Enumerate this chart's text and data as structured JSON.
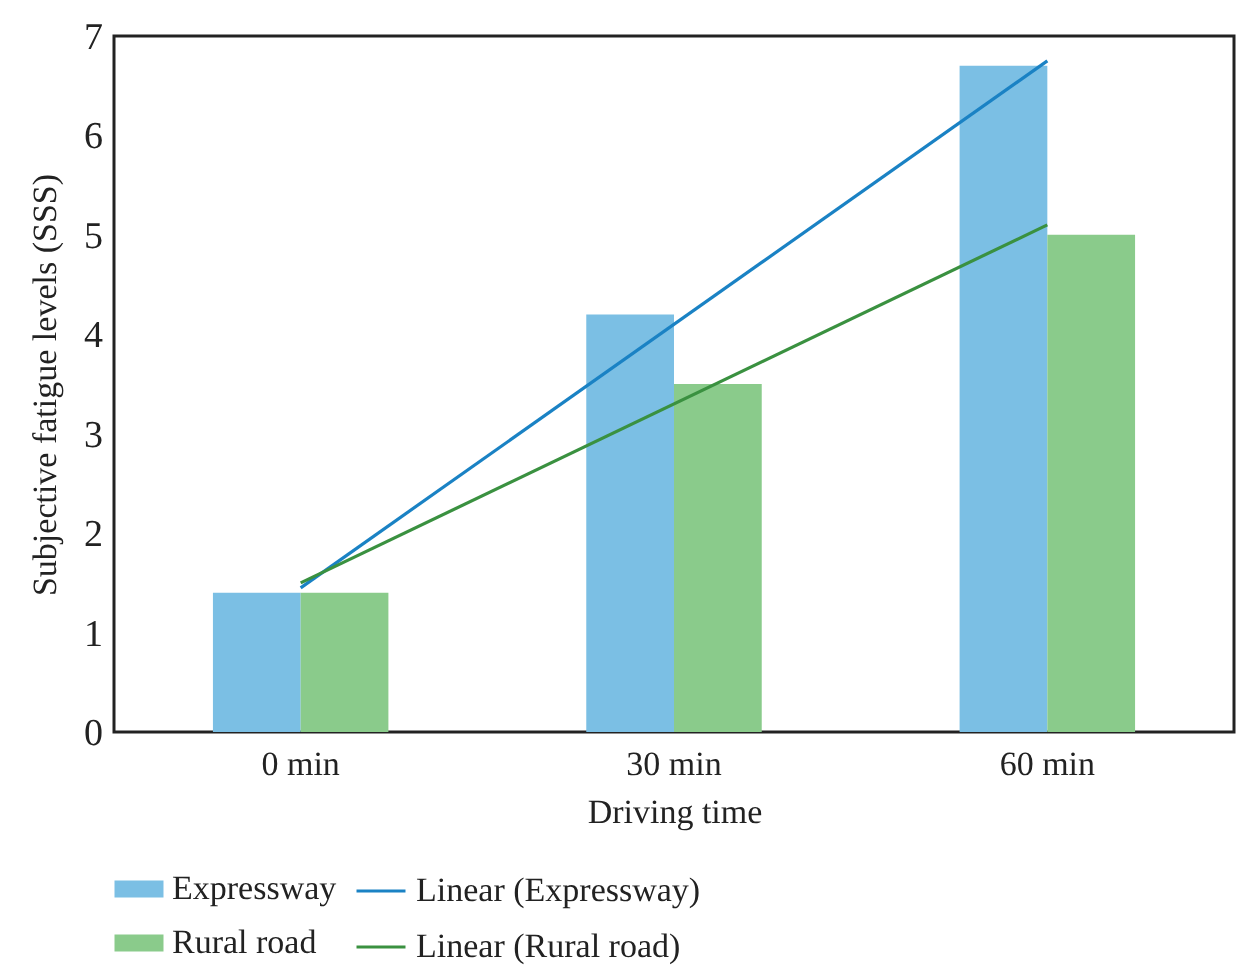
{
  "chart_data": {
    "type": "bar",
    "xlabel": "Driving time",
    "ylabel": "Subjective fatigue levels (SSS)",
    "categories": [
      "0 min",
      "30 min",
      "60 min"
    ],
    "ylim": [
      0,
      7
    ],
    "yticks": [
      0,
      1,
      2,
      3,
      4,
      5,
      6,
      7
    ],
    "legend": "bottom",
    "series": [
      {
        "name": "Expressway",
        "color": "#7bbfe4",
        "values": [
          1.4,
          4.2,
          6.7
        ]
      },
      {
        "name": "Rural road",
        "color": "#8acb8b",
        "values": [
          1.4,
          3.5,
          5.0
        ]
      },
      {
        "name": "Linear (Expressway)",
        "type": "line",
        "color": "#1a82c4",
        "x": [
          "0 min",
          "60 min"
        ],
        "values": [
          1.45,
          6.75
        ]
      },
      {
        "name": "Linear (Rural road)",
        "type": "line",
        "color": "#3a9140",
        "x": [
          "0 min",
          "60 min"
        ],
        "values": [
          1.5,
          5.1
        ]
      }
    ]
  }
}
